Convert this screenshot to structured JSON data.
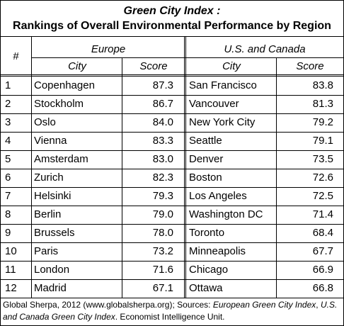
{
  "title": {
    "line1": "Green City Index :",
    "line2": "Rankings of Overall Environmental Performance by Region"
  },
  "table": {
    "rank_header": "#",
    "groups": [
      "Europe",
      "U.S. and Canada"
    ],
    "subheaders": [
      "City",
      "Score",
      "City",
      "Score"
    ],
    "rows": [
      [
        "1",
        "Copenhagen",
        "87.3",
        "San Francisco",
        "83.8"
      ],
      [
        "2",
        "Stockholm",
        "86.7",
        "Vancouver",
        "81.3"
      ],
      [
        "3",
        "Oslo",
        "84.0",
        "New York City",
        "79.2"
      ],
      [
        "4",
        "Vienna",
        "83.3",
        "Seattle",
        "79.1"
      ],
      [
        "5",
        "Amsterdam",
        "83.0",
        "Denver",
        "73.5"
      ],
      [
        "6",
        "Zurich",
        "82.3",
        "Boston",
        "72.6"
      ],
      [
        "7",
        "Helsinki",
        "79.3",
        "Los Angeles",
        "72.5"
      ],
      [
        "8",
        "Berlin",
        "79.0",
        "Washington DC",
        "71.4"
      ],
      [
        "9",
        "Brussels",
        "78.0",
        "Toronto",
        "68.4"
      ],
      [
        "10",
        "Paris",
        "73.2",
        "Minneapolis",
        "67.7"
      ],
      [
        "11",
        "London",
        "71.6",
        "Chicago",
        "66.9"
      ],
      [
        "12",
        "Madrid",
        "67.1",
        "Ottawa",
        "66.8"
      ]
    ]
  },
  "footnote": {
    "segments": [
      "Global Sherpa, 2012 (www.globalsherpa.org); Sources: ",
      "European Green City Index",
      ", ",
      "U.S. and Canada Green City Index",
      ".  Economist Intelligence Unit."
    ]
  }
}
